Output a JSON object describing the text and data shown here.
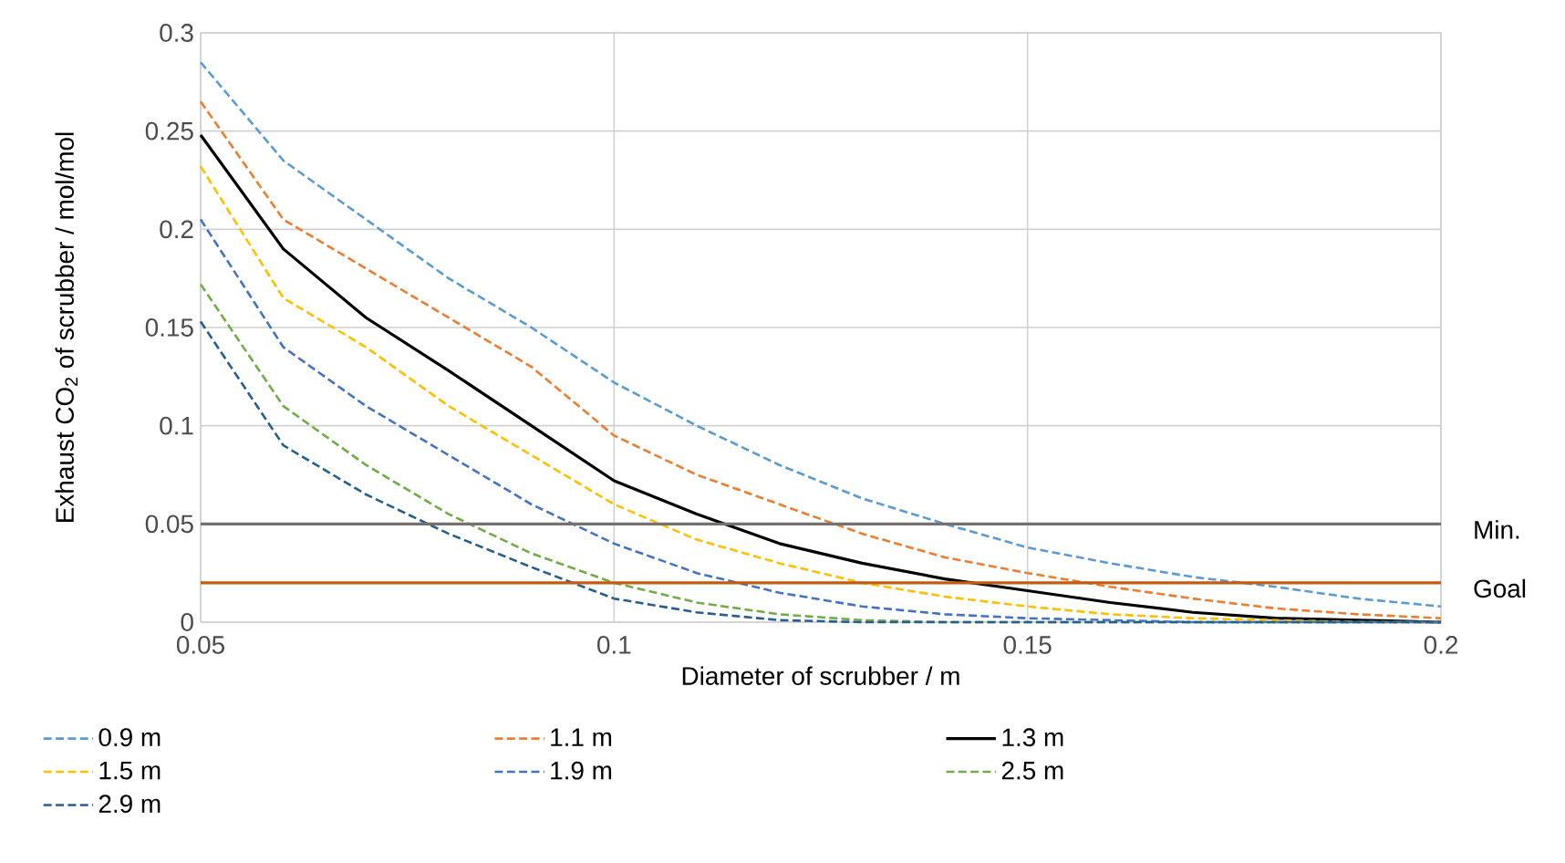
{
  "chart_data": {
    "type": "line",
    "xlabel": "Diameter of scrubber / m",
    "ylabel": "Exhaust CO$_{2}$ of scrubber / mol/mol",
    "x": [
      0.05,
      0.06,
      0.07,
      0.08,
      0.09,
      0.1,
      0.11,
      0.12,
      0.13,
      0.14,
      0.15,
      0.16,
      0.17,
      0.18,
      0.19,
      0.2
    ],
    "series": [
      {
        "name": "0.9 m",
        "color": "#5b9bd5",
        "line_style": "dashed",
        "values": [
          0.285,
          0.235,
          0.205,
          0.175,
          0.15,
          0.122,
          0.1,
          0.08,
          0.063,
          0.05,
          0.038,
          0.03,
          0.023,
          0.018,
          0.012,
          0.008
        ]
      },
      {
        "name": "1.1 m",
        "color": "#ed7d31",
        "line_style": "dashed",
        "values": [
          0.265,
          0.205,
          0.18,
          0.155,
          0.13,
          0.095,
          0.075,
          0.06,
          0.045,
          0.033,
          0.025,
          0.018,
          0.012,
          0.007,
          0.004,
          0.002
        ]
      },
      {
        "name": "1.3 m",
        "color": "#000000",
        "line_style": "solid",
        "values": [
          0.248,
          0.19,
          0.155,
          0.128,
          0.1,
          0.072,
          0.055,
          0.04,
          0.03,
          0.022,
          0.016,
          0.01,
          0.005,
          0.002,
          0.001,
          0.0
        ]
      },
      {
        "name": "1.5 m",
        "color": "#ffc000",
        "line_style": "dashed",
        "values": [
          0.232,
          0.165,
          0.14,
          0.11,
          0.085,
          0.06,
          0.042,
          0.03,
          0.02,
          0.013,
          0.008,
          0.004,
          0.002,
          0.001,
          0.0,
          0.0
        ]
      },
      {
        "name": "1.9 m",
        "color": "#4472c4",
        "line_style": "dashed",
        "values": [
          0.205,
          0.14,
          0.11,
          0.085,
          0.06,
          0.04,
          0.025,
          0.015,
          0.008,
          0.004,
          0.002,
          0.001,
          0.0,
          0.0,
          0.0,
          0.0
        ]
      },
      {
        "name": "2.5 m",
        "color": "#70ad47",
        "line_style": "dashed",
        "values": [
          0.172,
          0.11,
          0.08,
          0.055,
          0.035,
          0.02,
          0.01,
          0.004,
          0.001,
          0.0,
          0.0,
          0.0,
          0.0,
          0.0,
          0.0,
          0.0
        ]
      },
      {
        "name": "2.9 m",
        "color": "#255e91",
        "line_style": "dashed",
        "values": [
          0.153,
          0.09,
          0.065,
          0.045,
          0.028,
          0.012,
          0.005,
          0.001,
          0.0,
          0.0,
          0.0,
          0.0,
          0.0,
          0.0,
          0.0,
          0.0
        ]
      }
    ],
    "ref_lines": [
      {
        "axis": "y",
        "value": 0.05,
        "label": "Min.",
        "color": "#767171"
      },
      {
        "axis": "y",
        "value": 0.02,
        "label": "Goal",
        "color": "#c55a11"
      }
    ],
    "xlim": [
      0.05,
      0.2
    ],
    "xticks": [
      0.05,
      0.1,
      0.15,
      0.2
    ],
    "ylim": [
      0,
      0.3
    ],
    "yticks": [
      0,
      0.05,
      0.1,
      0.15,
      0.2,
      0.25,
      0.3
    ],
    "grid": true,
    "legend": "bottom",
    "marker": "none"
  }
}
